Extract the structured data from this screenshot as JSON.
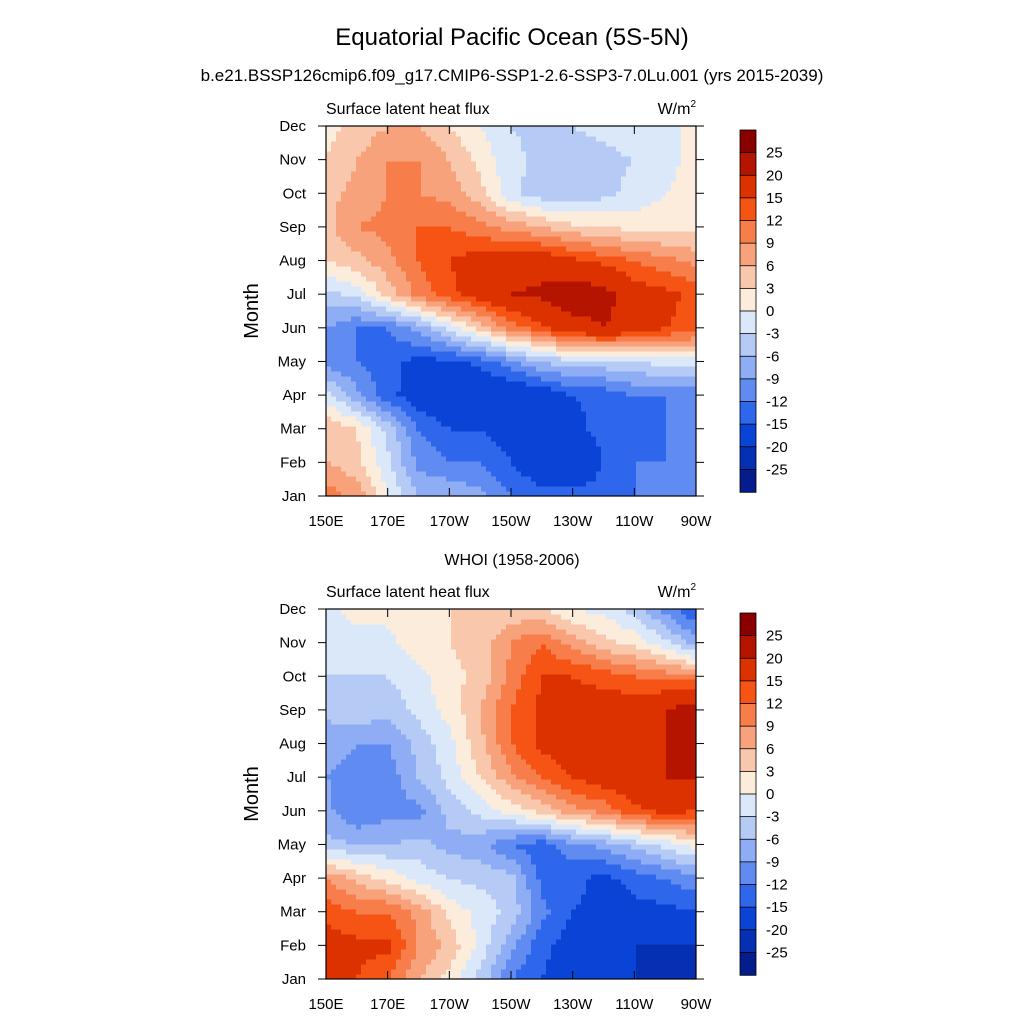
{
  "figure": {
    "title": "Equatorial Pacific Ocean (5S-5N)",
    "subtitle": "b.e21.BSSP126cmip6.f09_g17.CMIP6-SSP1-2.6-SSP3-7.0Lu.001 (yrs 2015-2039)"
  },
  "colorbar": {
    "levels": [
      "25",
      "20",
      "15",
      "12",
      "9",
      "6",
      "3",
      "0",
      "-3",
      "-6",
      "-9",
      "-12",
      "-15",
      "-20",
      "-25"
    ],
    "colors": [
      "#890000",
      "#b51500",
      "#dc3200",
      "#f65414",
      "#f77d4a",
      "#f8a27c",
      "#f9c7ab",
      "#fcecdc",
      "#dbe8f9",
      "#b5cbf6",
      "#8fadf4",
      "#608cf1",
      "#2f67ec",
      "#0944d7",
      "#0630b4",
      "#041c8c"
    ]
  },
  "chart_data": [
    {
      "type": "heatmap",
      "title": "",
      "left_string": "Surface latent heat flux",
      "units": "W/m",
      "units_sup": "2",
      "ylabel": "Month",
      "xlabel": "",
      "x_ticks": [
        "150E",
        "170E",
        "170W",
        "150W",
        "130W",
        "110W",
        "90W"
      ],
      "y_ticks": [
        "Jan",
        "Feb",
        "Mar",
        "Apr",
        "May",
        "Jun",
        "Jul",
        "Aug",
        "Sep",
        "Oct",
        "Nov",
        "Dec"
      ],
      "x": [
        150,
        160,
        170,
        180,
        190,
        200,
        210,
        220,
        230,
        240,
        250,
        260,
        270
      ],
      "xlim": [
        150,
        270
      ],
      "z": [
        [
          11,
          8,
          0,
          -6,
          -6,
          -8,
          -12,
          -14,
          -14,
          -14,
          -12,
          -12,
          -12
        ],
        [
          6,
          4,
          -2,
          -10,
          -12,
          -12,
          -15,
          -18,
          -18,
          -15,
          -12,
          -12,
          -12
        ],
        [
          6,
          3,
          -4,
          -12,
          -15,
          -15,
          -17,
          -18,
          -16,
          -14,
          -15,
          -12,
          -12
        ],
        [
          -2,
          -8,
          -14,
          -17,
          -19,
          -20,
          -19,
          -18,
          -15,
          -14,
          -12,
          -12,
          -12
        ],
        [
          -10,
          -12,
          -14,
          -16,
          -16,
          -14,
          -10,
          -6,
          -4,
          -4,
          -3,
          -2,
          -2
        ],
        [
          -9,
          -12,
          -12,
          -8,
          -2,
          4,
          10,
          14,
          18,
          20,
          18,
          15,
          14
        ],
        [
          -4,
          -2,
          4,
          10,
          14,
          17,
          20,
          21,
          23,
          22,
          17,
          16,
          14
        ],
        [
          3,
          5,
          8,
          12,
          15,
          17,
          18,
          18,
          16,
          14,
          12,
          10,
          8
        ],
        [
          5,
          9,
          10,
          12,
          12,
          10,
          8,
          6,
          4,
          3,
          2,
          2,
          2
        ],
        [
          5,
          7,
          9,
          9,
          8,
          4,
          -2,
          -5,
          -6,
          -4,
          -2,
          0,
          1
        ],
        [
          3,
          6,
          9,
          9,
          6,
          2,
          -2,
          -4,
          -5,
          -4,
          -3,
          -1,
          1
        ],
        [
          2,
          4,
          6,
          6,
          3,
          0,
          -3,
          -4,
          -3,
          -2,
          -1,
          0,
          0
        ]
      ]
    },
    {
      "type": "heatmap",
      "title": "WHOI (1958-2006)",
      "left_string": "Surface latent heat flux",
      "units": "W/m",
      "units_sup": "2",
      "ylabel": "Month",
      "xlabel": "",
      "x_ticks": [
        "150E",
        "170E",
        "170W",
        "150W",
        "130W",
        "110W",
        "90W"
      ],
      "y_ticks": [
        "Jan",
        "Feb",
        "Mar",
        "Apr",
        "May",
        "Jun",
        "Jul",
        "Aug",
        "Sep",
        "Oct",
        "Nov",
        "Dec"
      ],
      "x": [
        150,
        160,
        170,
        180,
        190,
        200,
        210,
        220,
        230,
        240,
        250,
        260,
        270
      ],
      "xlim": [
        150,
        270
      ],
      "z": [
        [
          15,
          15,
          12,
          6,
          2,
          -4,
          -12,
          -15,
          -18,
          -20,
          -20,
          -22,
          -25
        ],
        [
          17,
          16,
          16,
          9,
          5,
          -1,
          -8,
          -14,
          -17,
          -20,
          -20,
          -20,
          -20
        ],
        [
          14,
          12,
          12,
          8,
          2,
          -1,
          -4,
          -11,
          -15,
          -16,
          -16,
          -16,
          -15
        ],
        [
          9,
          5,
          2,
          -1,
          -3,
          -4,
          -5,
          -13,
          -14,
          -16,
          -14,
          -12,
          -10
        ],
        [
          -5,
          -6,
          -6,
          -5,
          -7,
          -8,
          -12,
          -14,
          -10,
          -8,
          -5,
          -2,
          1
        ],
        [
          -8,
          -12,
          -10,
          -10,
          -5,
          -2,
          1,
          4,
          8,
          10,
          14,
          16,
          15
        ],
        [
          -9,
          -10,
          -11,
          -6,
          -2,
          3,
          8,
          12,
          15,
          17,
          18,
          20,
          20
        ],
        [
          -8,
          -9,
          -9,
          -5,
          -1,
          5,
          12,
          16,
          18,
          16,
          17,
          20,
          21
        ],
        [
          -5,
          -4,
          -5,
          -2,
          1,
          6,
          12,
          16,
          16,
          17,
          18,
          20,
          23
        ],
        [
          -3,
          -3,
          -3,
          -1,
          2,
          4,
          10,
          15,
          15,
          14,
          12,
          11,
          10
        ],
        [
          -2,
          -1,
          -1,
          2,
          3,
          4,
          9,
          12,
          8,
          4,
          2,
          -2,
          -8
        ],
        [
          -1,
          1,
          1,
          2,
          3,
          3,
          4,
          3,
          0,
          -1,
          -4,
          -10,
          -15
        ]
      ]
    }
  ]
}
